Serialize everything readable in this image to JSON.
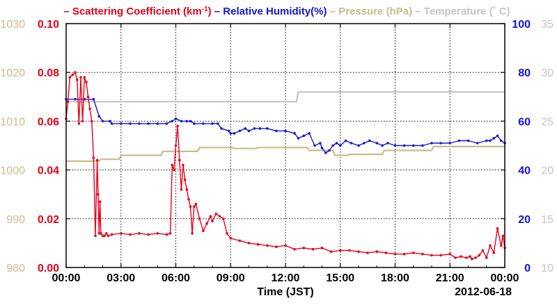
{
  "legend": [
    {
      "marker": "–",
      "text": "Scattering Coefficient (km",
      "sup": "-1",
      "close": ")",
      "color": "#e8001a"
    },
    {
      "marker": "–",
      "text": "Relative Humidity(%)",
      "color": "#1414d8"
    },
    {
      "marker": "–",
      "text": "Pressure (hPa)",
      "color": "#c8bd8a"
    },
    {
      "marker": "–",
      "text": "Temperature (˚ C)",
      "color": "#c4c4c4"
    }
  ],
  "chart_data": {
    "type": "line",
    "x_label": "Time (JST)",
    "date_label": "2012-06-18",
    "x_ticks": [
      "00:00",
      "03:00",
      "06:00",
      "09:00",
      "12:00",
      "15:00",
      "18:00",
      "21:00",
      "00:00"
    ],
    "x_range_hours": [
      0,
      24
    ],
    "axes": {
      "pressure": {
        "side": "left-outer",
        "range": [
          980,
          1030
        ],
        "ticks": [
          "980",
          "990",
          "1000",
          "1010",
          "1020",
          "1030"
        ],
        "color": "#c8bd8a"
      },
      "scattering": {
        "side": "left-inner",
        "range": [
          0.0,
          0.1
        ],
        "ticks": [
          "0.00",
          "0.02",
          "0.04",
          "0.06",
          "0.08",
          "0.10"
        ],
        "color": "#e8001a"
      },
      "humidity": {
        "side": "right-inner",
        "range": [
          0,
          100
        ],
        "ticks": [
          "0",
          "20",
          "40",
          "60",
          "80",
          "100"
        ],
        "color": "#1414d8"
      },
      "temperature": {
        "side": "right-outer",
        "range": [
          10,
          35
        ],
        "ticks": [
          "10",
          "15",
          "20",
          "25",
          "30",
          "35"
        ],
        "color": "#c4c4c4"
      }
    },
    "grid": true,
    "series": [
      {
        "name": "Scattering Coefficient (km-1)",
        "axis": "scattering",
        "color": "#e8001a",
        "markers": true,
        "x": [
          0.0,
          0.1,
          0.2,
          0.35,
          0.5,
          0.6,
          0.7,
          0.8,
          0.9,
          1.0,
          1.1,
          1.2,
          1.3,
          1.4,
          1.5,
          1.6,
          1.7,
          1.75,
          1.8,
          1.85,
          1.9,
          2.0,
          2.1,
          2.2,
          2.3,
          2.5,
          3.0,
          3.5,
          4.0,
          4.5,
          5.0,
          5.5,
          5.7,
          5.8,
          5.9,
          6.0,
          6.1,
          6.2,
          6.3,
          6.4,
          6.5,
          6.6,
          6.7,
          6.8,
          6.9,
          7.0,
          7.1,
          7.3,
          7.5,
          7.7,
          7.9,
          8.0,
          8.2,
          8.4,
          8.6,
          8.8,
          9.0,
          9.5,
          10.0,
          10.5,
          11.0,
          11.5,
          12.0,
          12.5,
          13.0,
          13.5,
          14.0,
          14.5,
          15.0,
          15.5,
          16.0,
          16.5,
          17.0,
          17.5,
          18.0,
          18.5,
          19.0,
          19.5,
          20.0,
          20.5,
          21.0,
          21.3,
          21.6,
          21.9,
          22.1,
          22.2,
          22.4,
          22.6,
          22.8,
          23.0,
          23.2,
          23.4,
          23.6,
          23.8,
          23.9,
          24.0
        ],
        "y": [
          0.061,
          0.068,
          0.078,
          0.079,
          0.08,
          0.077,
          0.059,
          0.078,
          0.06,
          0.078,
          0.076,
          0.07,
          0.065,
          0.06,
          0.045,
          0.013,
          0.044,
          0.03,
          0.014,
          0.027,
          0.014,
          0.013,
          0.013,
          0.014,
          0.013,
          0.0135,
          0.014,
          0.0135,
          0.014,
          0.0135,
          0.014,
          0.0135,
          0.014,
          0.042,
          0.04,
          0.05,
          0.058,
          0.044,
          0.032,
          0.042,
          0.036,
          0.032,
          0.028,
          0.025,
          0.014,
          0.025,
          0.026,
          0.02,
          0.015,
          0.018,
          0.021,
          0.019,
          0.022,
          0.021,
          0.02,
          0.014,
          0.012,
          0.011,
          0.01,
          0.0095,
          0.009,
          0.0085,
          0.009,
          0.0075,
          0.008,
          0.0075,
          0.008,
          0.0065,
          0.007,
          0.007,
          0.0065,
          0.006,
          0.0065,
          0.006,
          0.0055,
          0.0055,
          0.006,
          0.0055,
          0.005,
          0.005,
          0.0055,
          0.004,
          0.0045,
          0.004,
          0.0045,
          0.0035,
          0.004,
          0.005,
          0.007,
          0.004,
          0.009,
          0.006,
          0.016,
          0.009,
          0.013,
          0.008
        ]
      },
      {
        "name": "Relative Humidity(%)",
        "axis": "humidity",
        "color": "#1414d8",
        "markers": true,
        "x": [
          0.0,
          0.5,
          1.0,
          1.5,
          1.8,
          2.0,
          2.4,
          2.5,
          3.0,
          3.5,
          4.0,
          4.5,
          5.0,
          5.5,
          5.8,
          6.0,
          6.3,
          6.6,
          6.8,
          7.0,
          7.5,
          8.0,
          8.3,
          8.5,
          8.9,
          9.0,
          9.2,
          9.5,
          9.8,
          10.0,
          10.3,
          10.6,
          11.0,
          11.5,
          12.0,
          12.5,
          12.7,
          13.0,
          13.3,
          13.6,
          13.9,
          14.0,
          14.2,
          14.4,
          14.6,
          14.8,
          15.0,
          15.3,
          15.6,
          16.0,
          16.3,
          16.6,
          17.0,
          17.3,
          17.6,
          18.0,
          18.5,
          19.0,
          19.5,
          20.0,
          20.5,
          21.0,
          21.5,
          22.0,
          22.5,
          23.0,
          23.2,
          23.4,
          23.6,
          23.8,
          24.0
        ],
        "y": [
          69,
          69,
          69,
          69,
          62,
          60,
          60,
          59,
          59,
          59,
          59,
          59,
          59,
          59,
          60,
          61,
          60,
          60,
          60,
          59,
          59,
          59,
          59,
          57,
          56,
          55,
          55,
          56,
          57,
          56,
          57,
          57,
          57,
          56,
          56,
          55,
          53,
          54,
          55,
          50,
          51,
          49,
          47,
          48,
          50,
          51,
          50,
          52,
          51,
          50,
          51,
          52,
          51,
          50,
          51,
          50,
          50,
          50,
          50,
          51,
          51,
          51,
          52,
          52,
          51,
          52,
          52,
          53,
          54,
          52,
          51
        ]
      },
      {
        "name": "Pressure (hPa)",
        "axis": "pressure",
        "color": "#c8bd8a",
        "markers": false,
        "x": [
          0.0,
          1.8,
          1.9,
          2.9,
          3.0,
          5.2,
          5.3,
          7.2,
          7.3,
          9.1,
          9.2,
          10.4,
          10.5,
          13.2,
          13.3,
          14.6,
          14.7,
          15.4,
          15.5,
          17.3,
          17.4,
          20.0,
          20.1,
          24.0
        ],
        "y": [
          1001.8,
          1001.8,
          1002.2,
          1002.2,
          1003.0,
          1003.0,
          1003.8,
          1003.8,
          1004.6,
          1004.6,
          1004.4,
          1004.4,
          1004.6,
          1004.6,
          1004.0,
          1004.0,
          1003.0,
          1003.0,
          1003.2,
          1003.2,
          1004.0,
          1004.0,
          1004.8,
          1004.8
        ]
      },
      {
        "name": "Temperature (C)",
        "axis": "temperature",
        "color": "#c4c4c4",
        "markers": false,
        "x": [
          0.0,
          12.6,
          12.7,
          24.0
        ],
        "y": [
          27.0,
          27.0,
          28.0,
          28.0
        ]
      }
    ]
  }
}
